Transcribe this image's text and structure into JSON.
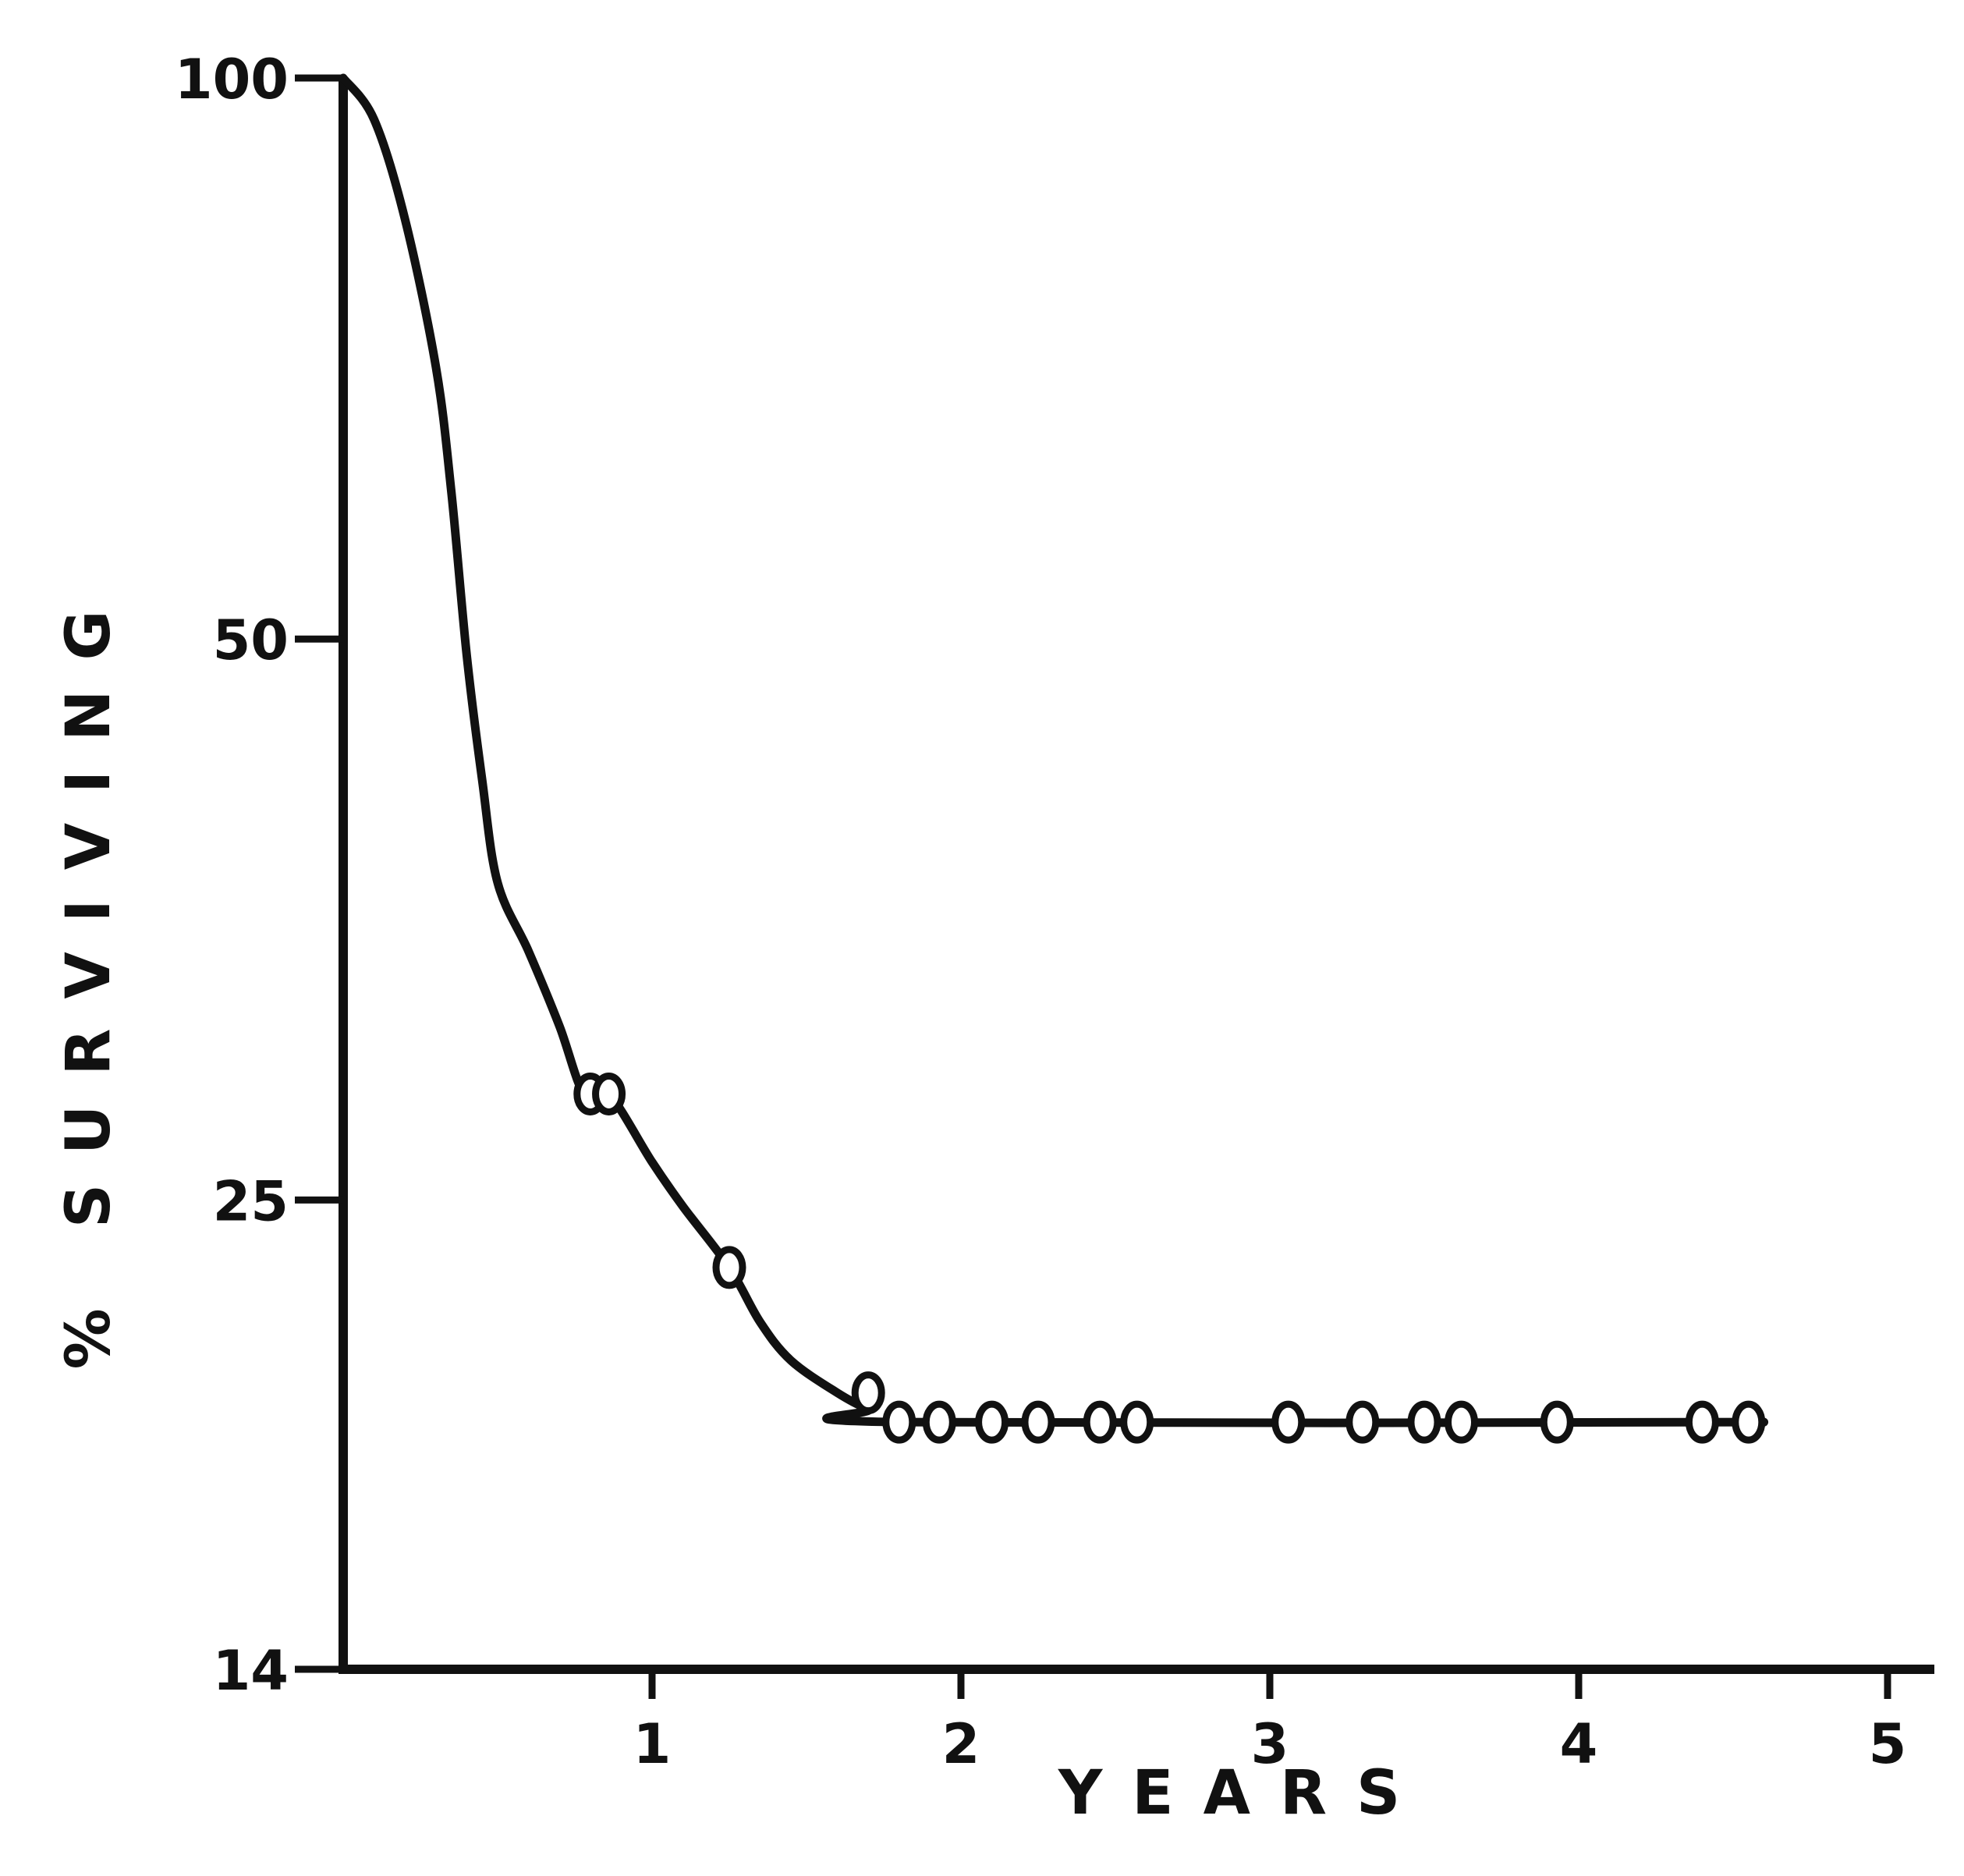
{
  "chart_data": {
    "type": "line",
    "title": "",
    "xlabel": "YEARS",
    "ylabel": "% SURVIVING",
    "xlim": [
      0,
      5
    ],
    "ylim": [
      14,
      100
    ],
    "y_scale": "log",
    "grid": false,
    "x_ticks": [
      {
        "value": 1,
        "label": "1"
      },
      {
        "value": 2,
        "label": "2"
      },
      {
        "value": 3,
        "label": "3"
      },
      {
        "value": 4,
        "label": "4"
      },
      {
        "value": 5,
        "label": "5"
      }
    ],
    "y_ticks": [
      {
        "value": 100,
        "label": "100"
      },
      {
        "value": 50,
        "label": "50"
      },
      {
        "value": 25,
        "label": "25"
      },
      {
        "value": 14,
        "label": "14"
      }
    ],
    "series": [
      {
        "curve": [
          {
            "x": 0,
            "y": 100
          },
          {
            "x": 0.1,
            "y": 95
          },
          {
            "x": 0.2,
            "y": 84
          },
          {
            "x": 0.3,
            "y": 70
          },
          {
            "x": 0.35,
            "y": 60
          },
          {
            "x": 0.4,
            "y": 49
          },
          {
            "x": 0.45,
            "y": 42
          },
          {
            "x": 0.5,
            "y": 37
          },
          {
            "x": 0.6,
            "y": 34
          },
          {
            "x": 0.7,
            "y": 31
          },
          {
            "x": 0.78,
            "y": 28.5
          },
          {
            "x": 0.86,
            "y": 28.5
          },
          {
            "x": 1.0,
            "y": 26.2
          },
          {
            "x": 1.1,
            "y": 24.8
          },
          {
            "x": 1.25,
            "y": 23
          },
          {
            "x": 1.35,
            "y": 21.5
          },
          {
            "x": 1.45,
            "y": 20.5
          },
          {
            "x": 1.6,
            "y": 19.7
          },
          {
            "x": 1.7,
            "y": 19.3
          },
          {
            "x": 1.8,
            "y": 19
          },
          {
            "x": 4.6,
            "y": 19
          }
        ],
        "censored_points": [
          {
            "x": 0.8,
            "y": 28.5
          },
          {
            "x": 0.86,
            "y": 28.5
          },
          {
            "x": 1.25,
            "y": 23
          },
          {
            "x": 1.7,
            "y": 19.7
          },
          {
            "x": 1.8,
            "y": 19
          },
          {
            "x": 1.93,
            "y": 19
          },
          {
            "x": 2.1,
            "y": 19
          },
          {
            "x": 2.25,
            "y": 19
          },
          {
            "x": 2.45,
            "y": 19
          },
          {
            "x": 2.57,
            "y": 19
          },
          {
            "x": 3.06,
            "y": 19
          },
          {
            "x": 3.3,
            "y": 19
          },
          {
            "x": 3.5,
            "y": 19
          },
          {
            "x": 3.62,
            "y": 19
          },
          {
            "x": 3.93,
            "y": 19
          },
          {
            "x": 4.4,
            "y": 19
          },
          {
            "x": 4.55,
            "y": 19
          }
        ]
      }
    ],
    "colors": {
      "ink": "#111111",
      "background": "#ffffff"
    }
  }
}
